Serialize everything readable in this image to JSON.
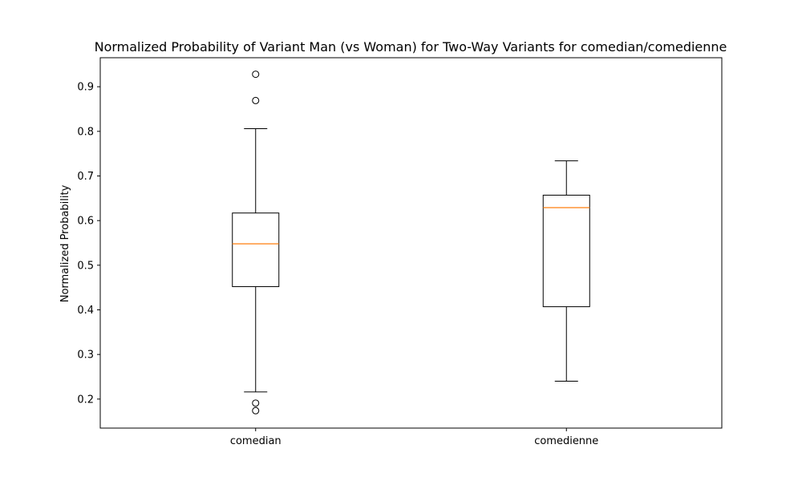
{
  "chart_data": {
    "type": "box",
    "title": "Normalized Probability of Variant Man (vs Woman) for Two-Way Variants for comedian/comedienne",
    "xlabel": "",
    "ylabel": "Normalized Probability",
    "ylim": [
      0.135,
      0.965
    ],
    "yticks": [
      0.2,
      0.3,
      0.4,
      0.5,
      0.6,
      0.7,
      0.8,
      0.9
    ],
    "grid": false,
    "categories": [
      "comedian",
      "comedienne"
    ],
    "boxes": [
      {
        "category": "comedian",
        "whisker_low": 0.216,
        "q1": 0.452,
        "median": 0.548,
        "q3": 0.617,
        "whisker_high": 0.806,
        "outliers": [
          0.928,
          0.869,
          0.191,
          0.174
        ]
      },
      {
        "category": "comedienne",
        "whisker_low": 0.24,
        "q1": 0.407,
        "median": 0.629,
        "q3": 0.657,
        "whisker_high": 0.734,
        "outliers": []
      }
    ],
    "colors": {
      "box": "#000000",
      "median": "#ff7f0e",
      "outlier": "#000000"
    }
  }
}
